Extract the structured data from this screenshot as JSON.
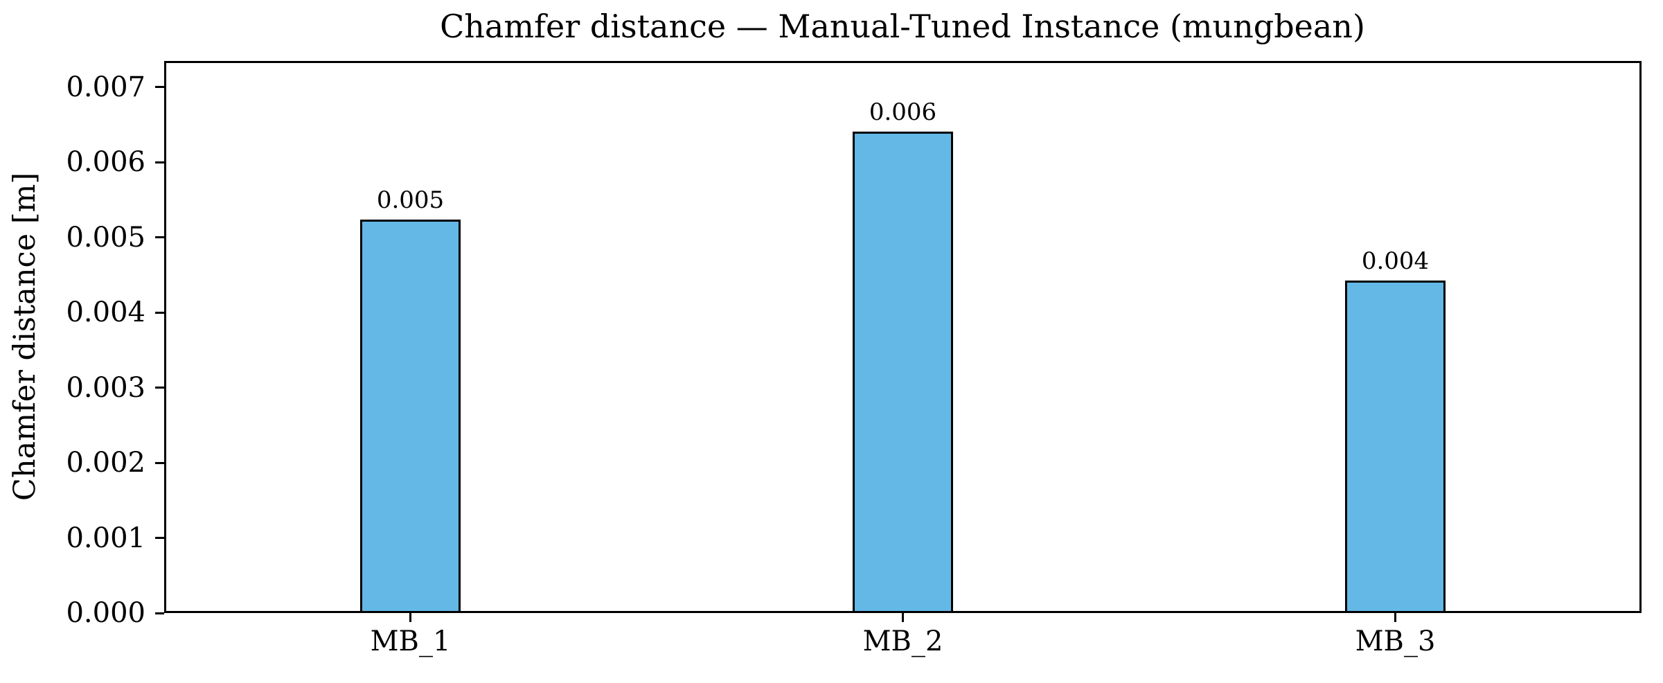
{
  "chart_data": {
    "type": "bar",
    "title": "Chamfer distance — Manual-Tuned Instance (mungbean)",
    "xlabel": "",
    "ylabel": "Chamfer distance [m]",
    "categories": [
      "MB_1",
      "MB_2",
      "MB_3"
    ],
    "values": [
      0.00524,
      0.00641,
      0.00443
    ],
    "bar_labels": [
      "0.005",
      "0.006",
      "0.004"
    ],
    "ytick_values": [
      0.0,
      0.001,
      0.002,
      0.003,
      0.004,
      0.005,
      0.006,
      0.007
    ],
    "ytick_labels": [
      "0.000",
      "0.001",
      "0.002",
      "0.003",
      "0.004",
      "0.005",
      "0.006",
      "0.007"
    ],
    "ylim": [
      0,
      0.00735
    ],
    "grid": false,
    "legend": null,
    "bar_color": "#64b8e6",
    "bar_edge_color": "#000000",
    "axis_color": "#000000"
  }
}
